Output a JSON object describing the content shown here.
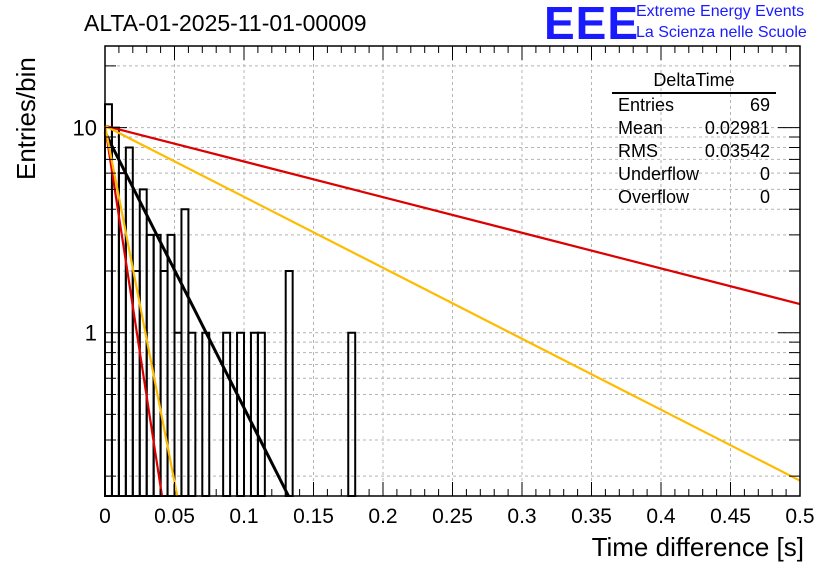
{
  "title": "ALTA-01-2025-11-01-00009",
  "logo": {
    "text": "EEE",
    "line1": "Extreme Energy Events",
    "line2": "La Scienza nelle Scuole",
    "color": "#1a1aff"
  },
  "stats_box": {
    "header": "DeltaTime",
    "rows": [
      {
        "label": "Entries",
        "value": "69"
      },
      {
        "label": "Mean",
        "value": "0.02981"
      },
      {
        "label": "RMS",
        "value": "0.03542"
      },
      {
        "label": "Underflow",
        "value": "0"
      },
      {
        "label": "Overflow",
        "value": "0"
      }
    ]
  },
  "chart_data": {
    "type": "histogram",
    "title": "ALTA-01-2025-11-01-00009",
    "xlabel": "Time difference [s]",
    "ylabel": "Entries/bin",
    "xlim": [
      0,
      0.5
    ],
    "ylim": [
      0.16,
      25
    ],
    "yscale": "log",
    "x_ticks": [
      "0",
      "0.05",
      "0.1",
      "0.15",
      "0.2",
      "0.25",
      "0.3",
      "0.35",
      "0.4",
      "0.45",
      "0.5"
    ],
    "y_ticks": [
      "1",
      "10"
    ],
    "grid": true,
    "bin_width": 0.005,
    "bins": [
      {
        "x0": 0.0,
        "count": 13
      },
      {
        "x0": 0.005,
        "count": 10
      },
      {
        "x0": 0.01,
        "count": 6
      },
      {
        "x0": 0.015,
        "count": 8
      },
      {
        "x0": 0.02,
        "count": 2
      },
      {
        "x0": 0.025,
        "count": 5
      },
      {
        "x0": 0.03,
        "count": 3
      },
      {
        "x0": 0.035,
        "count": 3
      },
      {
        "x0": 0.04,
        "count": 2
      },
      {
        "x0": 0.045,
        "count": 3
      },
      {
        "x0": 0.05,
        "count": 1
      },
      {
        "x0": 0.055,
        "count": 4
      },
      {
        "x0": 0.06,
        "count": 1
      },
      {
        "x0": 0.065,
        "count": 0
      },
      {
        "x0": 0.07,
        "count": 1
      },
      {
        "x0": 0.075,
        "count": 0
      },
      {
        "x0": 0.08,
        "count": 0
      },
      {
        "x0": 0.085,
        "count": 1
      },
      {
        "x0": 0.09,
        "count": 0
      },
      {
        "x0": 0.095,
        "count": 1
      },
      {
        "x0": 0.1,
        "count": 0
      },
      {
        "x0": 0.105,
        "count": 1
      },
      {
        "x0": 0.11,
        "count": 1
      },
      {
        "x0": 0.115,
        "count": 0
      },
      {
        "x0": 0.12,
        "count": 0
      },
      {
        "x0": 0.125,
        "count": 0
      },
      {
        "x0": 0.13,
        "count": 2
      },
      {
        "x0": 0.135,
        "count": 0
      },
      {
        "x0": 0.14,
        "count": 0
      },
      {
        "x0": 0.145,
        "count": 0
      },
      {
        "x0": 0.15,
        "count": 0
      },
      {
        "x0": 0.155,
        "count": 0
      },
      {
        "x0": 0.16,
        "count": 0
      },
      {
        "x0": 0.165,
        "count": 0
      },
      {
        "x0": 0.17,
        "count": 0
      },
      {
        "x0": 0.175,
        "count": 1
      },
      {
        "x0": 0.18,
        "count": 0
      }
    ],
    "fits": [
      {
        "name": "fit-black",
        "color": "#000000",
        "width": 3,
        "x": [
          0.0,
          0.132
        ],
        "y": [
          9.5,
          0.16
        ]
      },
      {
        "name": "fit-red-steep",
        "color": "#dd0000",
        "width": 2.2,
        "x": [
          0.0,
          0.041
        ],
        "y": [
          10.2,
          0.16
        ]
      },
      {
        "name": "fit-orange-steep",
        "color": "#ffbb00",
        "width": 2.2,
        "x": [
          0.0,
          0.052
        ],
        "y": [
          10.2,
          0.16
        ]
      },
      {
        "name": "fit-red-shallow",
        "color": "#dd0000",
        "width": 2.2,
        "x": [
          0.0,
          0.5
        ],
        "y": [
          10.2,
          1.38
        ]
      },
      {
        "name": "fit-orange-shallow",
        "color": "#ffbb00",
        "width": 2.2,
        "x": [
          0.0,
          0.5
        ],
        "y": [
          10.2,
          0.19
        ]
      }
    ]
  }
}
